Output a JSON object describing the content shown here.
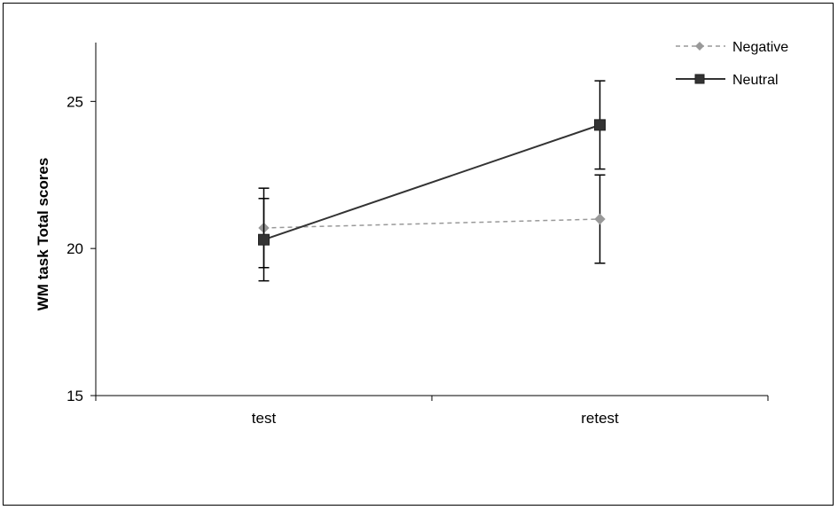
{
  "chart_data": {
    "type": "line",
    "title": "",
    "xlabel": "",
    "ylabel": "WM task Total scores",
    "categories": [
      "test",
      "retest"
    ],
    "ylim": [
      15,
      27
    ],
    "yticks": [
      15,
      20,
      25
    ],
    "grid": false,
    "legend_position": "top-right",
    "series": [
      {
        "name": "Negative",
        "values": [
          20.7,
          21.0
        ],
        "error": [
          1.35,
          1.5
        ],
        "color": "#999999",
        "line_style": "dashed",
        "marker": "diamond"
      },
      {
        "name": "Neutral",
        "values": [
          20.3,
          24.2
        ],
        "error": [
          1.4,
          1.5
        ],
        "color": "#333333",
        "line_style": "solid",
        "marker": "square"
      }
    ]
  }
}
